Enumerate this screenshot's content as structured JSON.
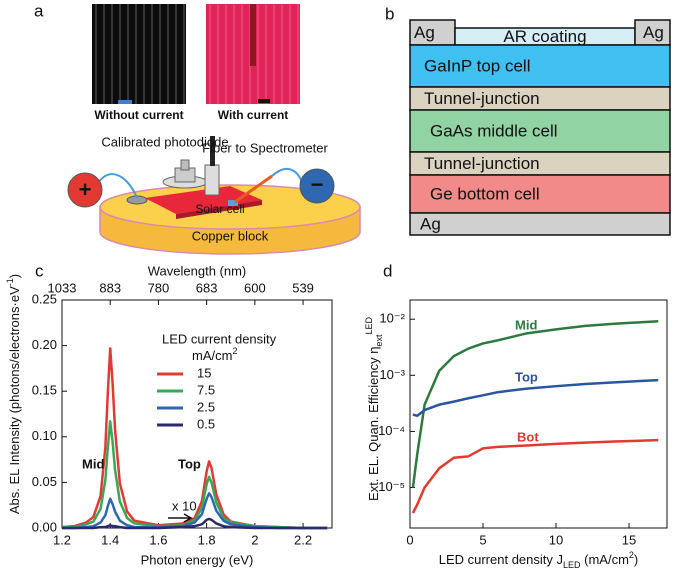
{
  "panels": {
    "a": {
      "letter": "a",
      "photo_left_label": "Without current",
      "photo_right_label": "With current",
      "photodiode": "Calibrated photodiode",
      "fiber": "Fiber to Spectrometer",
      "plus": "+",
      "minus": "−",
      "solar_cell": "Solar cell",
      "block": "Copper block"
    },
    "b": {
      "letter": "b",
      "layers": [
        "Ag",
        "AR coating",
        "Ag",
        "GaInP top cell",
        "Tunnel-junction",
        "GaAs middle cell",
        "Tunnel-junction",
        "Ge bottom cell",
        "Ag"
      ]
    }
  },
  "chart_data": [
    {
      "type": "line",
      "letter": "c",
      "x_label": "Photon energy (eV)",
      "x2_label": "Wavelength (nm)",
      "y_label": "Abs. EL Intensity (photons/electrons·eV",
      "y_label_sup": "-1",
      "y_label_end": ")",
      "legend_title": "LED current density",
      "legend_unit": "mA/cm",
      "legend_unit_sup": "2",
      "annotations": [
        "Mid",
        "Top",
        "x 10"
      ],
      "xlim": [
        1.2,
        2.32
      ],
      "ylim": [
        0,
        0.25
      ],
      "xticks": [
        1.2,
        1.4,
        1.6,
        1.8,
        2.0,
        2.2
      ],
      "x2ticks": [
        {
          "value": 1.2,
          "label": "1033"
        },
        {
          "value": 1.4,
          "label": "883"
        },
        {
          "value": 1.6,
          "label": "780"
        },
        {
          "value": 1.8,
          "label": "683"
        },
        {
          "value": 2.0,
          "label": "600"
        },
        {
          "value": 2.2,
          "label": "539"
        }
      ],
      "yticks": [
        {
          "value": 0,
          "label": "0.00"
        },
        {
          "value": 0.05,
          "label": "0.05"
        },
        {
          "value": 0.1,
          "label": "0.10"
        },
        {
          "value": 0.15,
          "label": "0.15"
        },
        {
          "value": 0.2,
          "label": "0.20"
        },
        {
          "value": 0.25,
          "label": "0.25"
        }
      ],
      "x": [
        1.2,
        1.25,
        1.3,
        1.33,
        1.36,
        1.38,
        1.39,
        1.4,
        1.41,
        1.42,
        1.44,
        1.47,
        1.5,
        1.6,
        1.7,
        1.75,
        1.78,
        1.8,
        1.81,
        1.82,
        1.84,
        1.87,
        1.9,
        2.0,
        2.1,
        2.2,
        2.3
      ],
      "series": [
        {
          "name": "15",
          "color": "#e23a32",
          "values": [
            0.001,
            0.002,
            0.006,
            0.012,
            0.035,
            0.089,
            0.148,
            0.197,
            0.158,
            0.108,
            0.049,
            0.018,
            0.008,
            0.003,
            0.005,
            0.011,
            0.029,
            0.062,
            0.073,
            0.066,
            0.037,
            0.015,
            0.007,
            0.002,
            0.001,
            0,
            0
          ]
        },
        {
          "name": "7.5",
          "color": "#3aa757",
          "values": [
            0.001,
            0.001,
            0.004,
            0.007,
            0.021,
            0.053,
            0.088,
            0.117,
            0.094,
            0.064,
            0.029,
            0.011,
            0.005,
            0.002,
            0.003,
            0.008,
            0.022,
            0.048,
            0.056,
            0.05,
            0.028,
            0.011,
            0.006,
            0.002,
            0.001,
            0,
            0
          ]
        },
        {
          "name": "2.5",
          "color": "#2f67b1",
          "values": [
            0,
            0,
            0.001,
            0.002,
            0.006,
            0.014,
            0.024,
            0.032,
            0.026,
            0.018,
            0.008,
            0.003,
            0.001,
            0.001,
            0.002,
            0.006,
            0.015,
            0.032,
            0.038,
            0.034,
            0.019,
            0.008,
            0.004,
            0.001,
            0,
            0,
            0
          ]
        },
        {
          "name": "0.5",
          "color": "#2b2a6b",
          "values": [
            0,
            0,
            0,
            0,
            0.001,
            0.001,
            0.002,
            0.003,
            0.002,
            0.002,
            0.001,
            0,
            0,
            0,
            0.001,
            0.002,
            0.004,
            0.009,
            0.01,
            0.009,
            0.005,
            0.002,
            0.001,
            0,
            0,
            0,
            0
          ]
        }
      ]
    },
    {
      "type": "line",
      "letter": "d",
      "log_y": true,
      "x_label": "LED current density J",
      "x_label_sub": "LED",
      "x_label_end": " (mA/cm",
      "x_label_sup": "2",
      "x_label_close": ")",
      "y_label": "Ext. EL. Quan. Efficiency η",
      "y_label_sub": "ext",
      "y_label_sup": "LED",
      "xlim": [
        0,
        17.6
      ],
      "ylim": [
        1.9e-06,
        0.022
      ],
      "xticks": [
        0,
        5,
        10,
        15
      ],
      "yticks": [
        {
          "value": 1e-05,
          "label": "10⁻⁵"
        },
        {
          "value": 0.0001,
          "label": "10⁻⁴"
        },
        {
          "value": 0.001,
          "label": "10⁻³"
        },
        {
          "value": 0.01,
          "label": "10⁻²"
        }
      ],
      "x": [
        0.2,
        0.5,
        1,
        2,
        3,
        4,
        5,
        6,
        8,
        10,
        12,
        14,
        17
      ],
      "series": [
        {
          "name": "Mid",
          "color": "#2e7a3e",
          "values": [
            1e-05,
            4e-05,
            0.0003,
            0.0012,
            0.0022,
            0.003,
            0.0037,
            0.0042,
            0.0056,
            0.0066,
            0.0076,
            0.0083,
            0.0092
          ]
        },
        {
          "name": "Top",
          "color": "#2a55a0",
          "values": [
            0.0002,
            0.00019,
            0.00024,
            0.0003,
            0.00034,
            0.00039,
            0.00044,
            0.0005,
            0.00058,
            0.00064,
            0.0007,
            0.00075,
            0.00082
          ]
        },
        {
          "name": "Bot",
          "color": "#e23a32",
          "values": [
            3.5e-06,
            5e-06,
            1e-05,
            2.2e-05,
            3.4e-05,
            3.6e-05,
            5e-05,
            5.3e-05,
            5.6e-05,
            6e-05,
            6.3e-05,
            6.6e-05,
            7e-05
          ]
        }
      ]
    }
  ]
}
